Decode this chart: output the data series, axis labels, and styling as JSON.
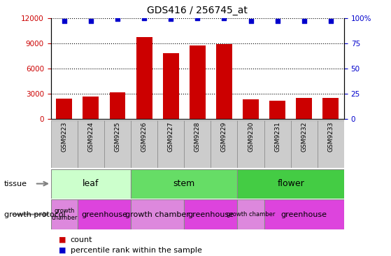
{
  "title": "GDS416 / 256745_at",
  "samples": [
    "GSM9223",
    "GSM9224",
    "GSM9225",
    "GSM9226",
    "GSM9227",
    "GSM9228",
    "GSM9229",
    "GSM9230",
    "GSM9231",
    "GSM9232",
    "GSM9233"
  ],
  "counts": [
    2400,
    2700,
    3200,
    9700,
    7800,
    8700,
    8900,
    2300,
    2200,
    2500,
    2500
  ],
  "percentiles": [
    97,
    97,
    99,
    100,
    99,
    100,
    100,
    97,
    97,
    97,
    97
  ],
  "ylim_left": [
    0,
    12000
  ],
  "ylim_right": [
    0,
    100
  ],
  "yticks_left": [
    0,
    3000,
    6000,
    9000,
    12000
  ],
  "yticks_right": [
    0,
    25,
    50,
    75,
    100
  ],
  "bar_color": "#cc0000",
  "dot_color": "#0000cc",
  "tissue_groups": [
    {
      "label": "leaf",
      "start": 0,
      "end": 3,
      "color": "#ccffcc"
    },
    {
      "label": "stem",
      "start": 3,
      "end": 7,
      "color": "#66dd66"
    },
    {
      "label": "flower",
      "start": 7,
      "end": 11,
      "color": "#44cc44"
    }
  ],
  "growth_protocol_groups": [
    {
      "label": "growth\nchamber",
      "start": 0,
      "end": 1,
      "color": "#dd88dd"
    },
    {
      "label": "greenhouse",
      "start": 1,
      "end": 3,
      "color": "#dd44dd"
    },
    {
      "label": "growth chamber",
      "start": 3,
      "end": 5,
      "color": "#dd88dd"
    },
    {
      "label": "greenhouse",
      "start": 5,
      "end": 7,
      "color": "#dd44dd"
    },
    {
      "label": "growth chamber",
      "start": 7,
      "end": 8,
      "color": "#dd88dd"
    },
    {
      "label": "greenhouse",
      "start": 8,
      "end": 11,
      "color": "#dd44dd"
    }
  ],
  "tissue_label": "tissue",
  "protocol_label": "growth protocol",
  "legend_count_label": "count",
  "legend_pct_label": "percentile rank within the sample",
  "bg_color": "#ffffff",
  "tick_label_color_left": "#cc0000",
  "tick_label_color_right": "#0000cc",
  "right_tick_labels": [
    "0",
    "25",
    "50",
    "75",
    "100%"
  ]
}
